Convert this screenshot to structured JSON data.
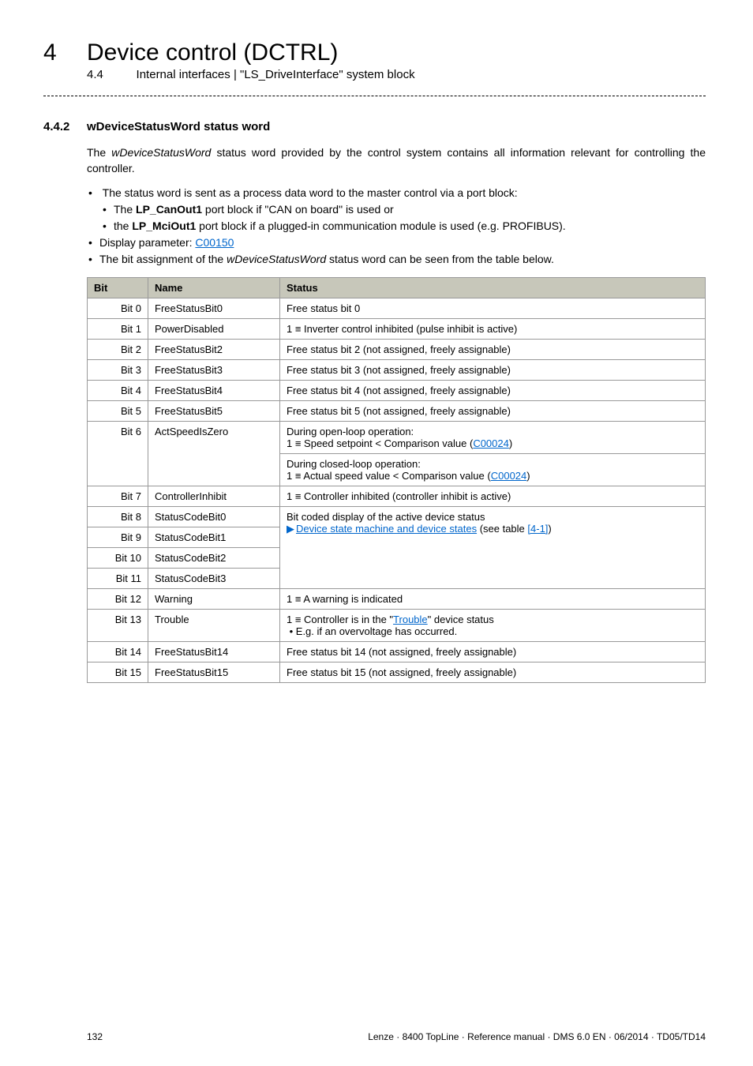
{
  "header": {
    "chapter_num": "4",
    "chapter_title": "Device control (DCTRL)",
    "sub_num": "4.4",
    "sub_title": "Internal interfaces | \"LS_DriveInterface\" system block"
  },
  "section": {
    "num": "4.4.2",
    "title": "wDeviceStatusWord status word"
  },
  "intro": {
    "para": "The wDeviceStatusWord status word provided by the control system contains all information relevant for controlling the controller.",
    "bullet1": "The status word is sent as a process data word to the master control via a port block:",
    "bullet1a_pre": "The ",
    "bullet1a_bold": "LP_CanOut1",
    "bullet1a_post": " port block if \"CAN on board\" is used or",
    "bullet1b_pre": "the ",
    "bullet1b_bold": "LP_MciOut1",
    "bullet1b_post": " port block if a plugged-in communication module is used (e.g. PROFIBUS).",
    "bullet2_pre": "Display parameter: ",
    "bullet2_link": "C00150",
    "bullet3": "The bit assignment of the wDeviceStatusWord status word can be seen from the table below."
  },
  "table": {
    "headers": {
      "bit": "Bit",
      "name": "Name",
      "status": "Status"
    },
    "rows": [
      {
        "bit": "Bit 0",
        "name": "FreeStatusBit0",
        "status": "Free status bit 0"
      },
      {
        "bit": "Bit 1",
        "name": "PowerDisabled",
        "status": "1 ≡ Inverter control inhibited (pulse inhibit is active)"
      },
      {
        "bit": "Bit 2",
        "name": "FreeStatusBit2",
        "status": "Free status bit 2 (not assigned, freely assignable)"
      },
      {
        "bit": "Bit 3",
        "name": "FreeStatusBit3",
        "status": "Free status bit 3 (not assigned, freely assignable)"
      },
      {
        "bit": "Bit 4",
        "name": "FreeStatusBit4",
        "status": "Free status bit 4 (not assigned, freely assignable)"
      },
      {
        "bit": "Bit 5",
        "name": "FreeStatusBit5",
        "status": "Free status bit 5 (not assigned, freely assignable)"
      }
    ],
    "row6": {
      "bit": "Bit 6",
      "name": "ActSpeedIsZero",
      "status_a_pre": "During open-loop operation:\n1 ≡ Speed setpoint < Comparison value (",
      "status_a_link": "C00024",
      "status_a_post": ")",
      "status_b_pre": "During closed-loop operation:\n1 ≡ Actual speed value < Comparison value (",
      "status_b_link": "C00024",
      "status_b_post": ")"
    },
    "row7": {
      "bit": "Bit 7",
      "name": "ControllerInhibit",
      "status": "1 ≡ Controller inhibited (controller inhibit is active)"
    },
    "row8": {
      "bit": "Bit 8",
      "name": "StatusCodeBit0",
      "status_line1": "Bit coded display of the active device status",
      "status_link": "Device state machine and device states",
      "status_link_post": " (see table ",
      "status_link2": "[4-1]",
      "status_post2": ")"
    },
    "row9": {
      "bit": "Bit 9",
      "name": "StatusCodeBit1"
    },
    "row10": {
      "bit": "Bit 10",
      "name": "StatusCodeBit2"
    },
    "row11": {
      "bit": "Bit 11",
      "name": "StatusCodeBit3"
    },
    "row12": {
      "bit": "Bit 12",
      "name": "Warning",
      "status": "1 ≡ A warning is indicated"
    },
    "row13": {
      "bit": "Bit 13",
      "name": "Trouble",
      "status_pre": "1 ≡ Controller is in the \"",
      "status_link": "Trouble",
      "status_post": "\" device status\n • E.g. if an overvoltage has occurred."
    },
    "row14": {
      "bit": "Bit 14",
      "name": "FreeStatusBit14",
      "status": "Free status bit 14 (not assigned, freely assignable)"
    },
    "row15": {
      "bit": "Bit 15",
      "name": "FreeStatusBit15",
      "status": "Free status bit 15 (not assigned, freely assignable)"
    }
  },
  "footer": {
    "page": "132",
    "right": "Lenze · 8400 TopLine · Reference manual · DMS 6.0 EN · 06/2014 · TD05/TD14"
  }
}
